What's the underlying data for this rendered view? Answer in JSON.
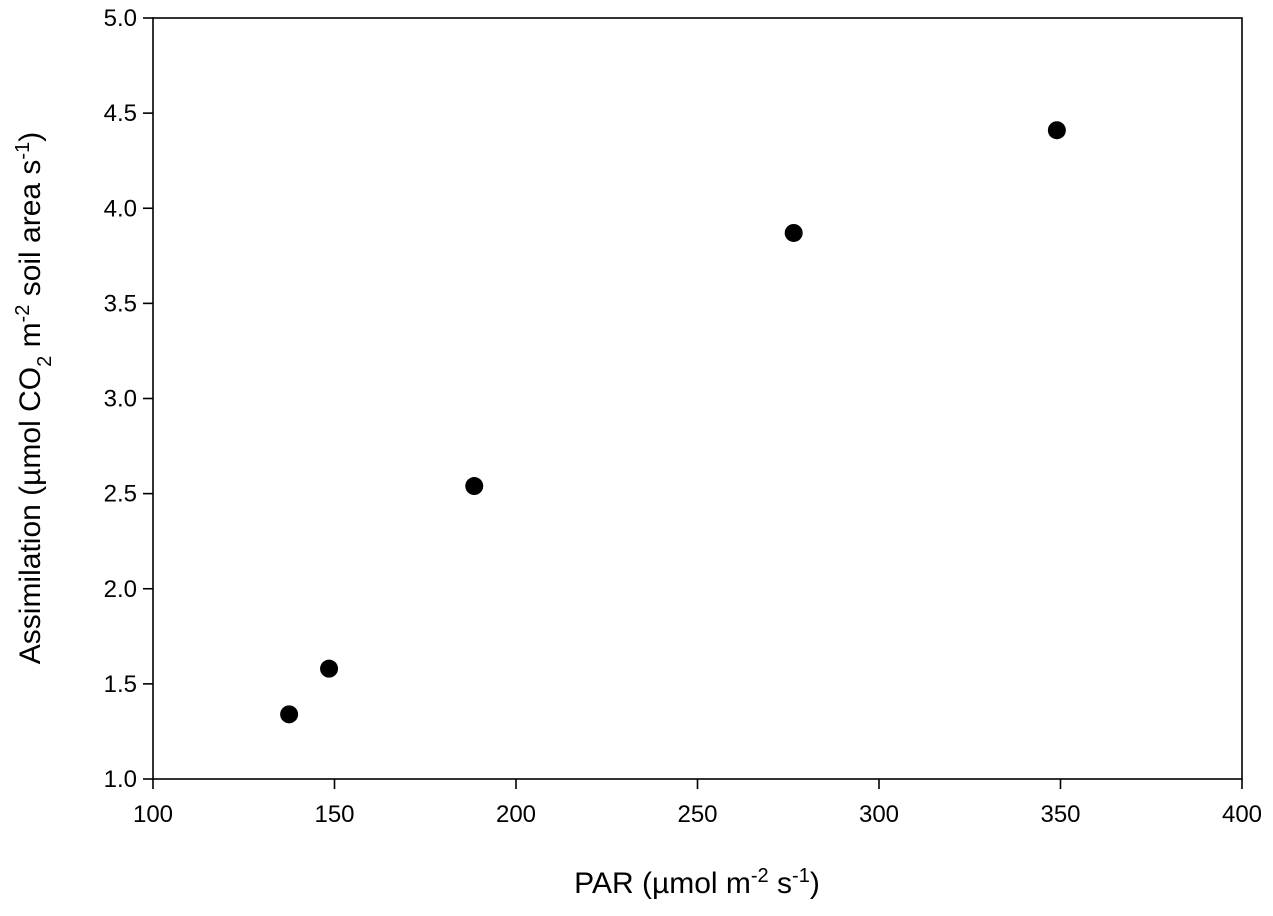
{
  "chart_data": {
    "type": "scatter",
    "xlabel": {
      "main": "PAR (µmol m",
      "sup1": "-2",
      "mid": " s",
      "sup2": "-1",
      "end": ")"
    },
    "ylabel": {
      "main": "Assimilation (µmol CO",
      "sub1": "2",
      "mid1": " m",
      "sup1": "-2",
      "mid2": " soil area s",
      "sup2": "-1",
      "end": ")"
    },
    "xlim": [
      100,
      400
    ],
    "ylim": [
      1.0,
      5.0
    ],
    "xticks": [
      "100",
      "150",
      "200",
      "250",
      "300",
      "350",
      "400"
    ],
    "yticks": [
      "1.0",
      "1.5",
      "2.0",
      "2.5",
      "3.0",
      "3.5",
      "4.0",
      "4.5",
      "5.0"
    ],
    "grid": false,
    "marker_color": "#000000",
    "points": [
      {
        "x": 137.5,
        "y": 1.34
      },
      {
        "x": 148.5,
        "y": 1.58
      },
      {
        "x": 188.5,
        "y": 2.54
      },
      {
        "x": 276.5,
        "y": 3.87
      },
      {
        "x": 349.0,
        "y": 4.41
      }
    ]
  }
}
